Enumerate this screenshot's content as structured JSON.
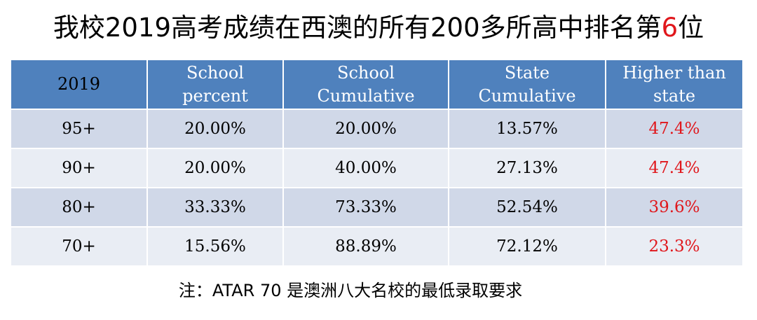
{
  "title": {
    "prefix": "我校2019高考成绩在西澳的所有200多所高中排名第",
    "rank": "6",
    "suffix": "位"
  },
  "table": {
    "headers": [
      [
        "2019"
      ],
      [
        "School",
        "percent"
      ],
      [
        "School",
        "Cumulative"
      ],
      [
        "State",
        "Cumulative"
      ],
      [
        "Higher than",
        "state"
      ]
    ],
    "rows": [
      {
        "level": "95+",
        "school_percent": "20.00%",
        "school_cumulative": "20.00%",
        "state_cumulative": "13.57%",
        "higher_than_state": "47.4%"
      },
      {
        "level": "90+",
        "school_percent": "20.00%",
        "school_cumulative": "40.00%",
        "state_cumulative": "27.13%",
        "higher_than_state": "47.4%"
      },
      {
        "level": "80+",
        "school_percent": "33.33%",
        "school_cumulative": "73.33%",
        "state_cumulative": "52.54%",
        "higher_than_state": "39.6%"
      },
      {
        "level": "70+",
        "school_percent": "15.56%",
        "school_cumulative": "88.89%",
        "state_cumulative": "72.12%",
        "higher_than_state": "23.3%"
      }
    ]
  },
  "footnote": "注：ATAR 70 是澳洲八大名校的最低录取要求",
  "colors": {
    "header_bg": "#4f81bd",
    "row_dark": "#d0d8e8",
    "row_light": "#e9edf4",
    "highlight_red": "#e0161b"
  }
}
